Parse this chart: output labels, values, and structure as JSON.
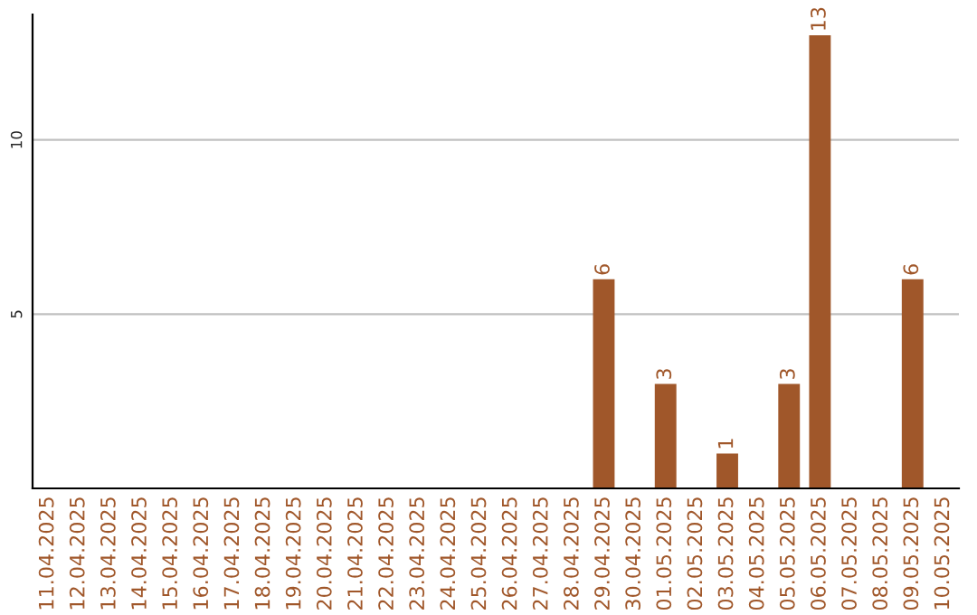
{
  "chart_data": {
    "type": "bar",
    "categories": [
      "11.04.2025",
      "12.04.2025",
      "13.04.2025",
      "14.04.2025",
      "15.04.2025",
      "16.04.2025",
      "17.04.2025",
      "18.04.2025",
      "19.04.2025",
      "20.04.2025",
      "21.04.2025",
      "22.04.2025",
      "23.04.2025",
      "24.04.2025",
      "25.04.2025",
      "26.04.2025",
      "27.04.2025",
      "28.04.2025",
      "29.04.2025",
      "30.04.2025",
      "01.05.2025",
      "02.05.2025",
      "03.05.2025",
      "04.05.2025",
      "05.05.2025",
      "06.05.2025",
      "07.05.2025",
      "08.05.2025",
      "09.05.2025",
      "10.05.2025"
    ],
    "values": [
      0,
      0,
      0,
      0,
      0,
      0,
      0,
      0,
      0,
      0,
      0,
      0,
      0,
      0,
      0,
      0,
      0,
      0,
      6,
      0,
      3,
      0,
      1,
      0,
      3,
      13,
      0,
      0,
      6,
      0
    ],
    "value_labels": [
      null,
      null,
      null,
      null,
      null,
      null,
      null,
      null,
      null,
      null,
      null,
      null,
      null,
      null,
      null,
      null,
      null,
      null,
      "6",
      null,
      "3",
      null,
      "1",
      null,
      "3",
      "13",
      null,
      null,
      "6",
      null
    ],
    "color": "#a0572a",
    "ylim": [
      0,
      13.6
    ],
    "yticks": [
      5,
      10
    ],
    "grid": "y"
  }
}
